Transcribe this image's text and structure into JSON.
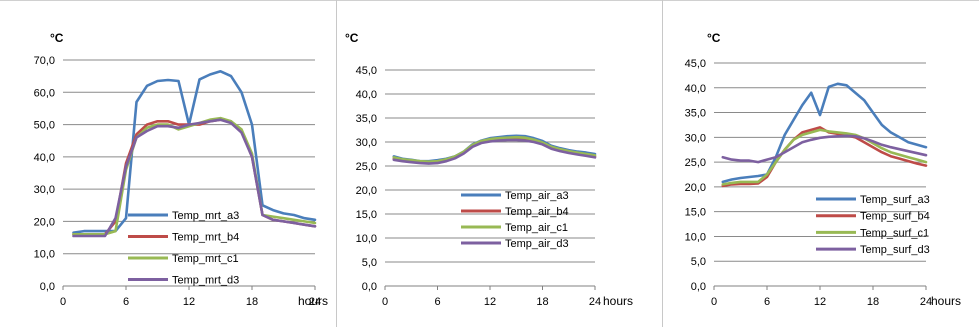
{
  "chart_data": [
    {
      "type": "line",
      "ylabel": "°C",
      "xlabel": "hours",
      "ylim": [
        0,
        70
      ],
      "yticks": [
        "0,0",
        "10,0",
        "20,0",
        "30,0",
        "40,0",
        "50,0",
        "60,0",
        "70,0"
      ],
      "xlim": [
        0,
        24
      ],
      "xticks": [
        "0",
        "6",
        "12",
        "18",
        "24"
      ],
      "grid": "horizontal",
      "legend_position": "bottom-center",
      "x": [
        1,
        2,
        3,
        4,
        5,
        6,
        7,
        8,
        9,
        10,
        11,
        12,
        13,
        14,
        15,
        16,
        17,
        18,
        19,
        20,
        21,
        22,
        23,
        24
      ],
      "series": [
        {
          "name": "Temp_mrt_a3",
          "color": "#4a7ebb",
          "values": [
            16.5,
            17,
            17,
            17,
            17,
            21,
            57,
            62,
            63.5,
            63.8,
            63.5,
            50,
            64,
            65.5,
            66.5,
            65,
            60,
            50,
            25,
            23.5,
            22.5,
            22,
            21,
            20.5
          ]
        },
        {
          "name": "Temp_mrt_b4",
          "color": "#be4b48",
          "values": [
            16,
            16,
            16,
            16,
            20,
            38,
            47,
            50,
            51,
            51,
            50,
            50,
            50,
            51,
            51.5,
            51,
            48,
            40,
            22,
            20.5,
            20,
            19.5,
            19,
            18.5
          ]
        },
        {
          "name": "Temp_mrt_c1",
          "color": "#98b954",
          "values": [
            16,
            16,
            16,
            16,
            17,
            36,
            46,
            49,
            50,
            50,
            48.5,
            49.5,
            50.5,
            51.5,
            52,
            51,
            48.5,
            41,
            22,
            21.5,
            21,
            20.5,
            20,
            19.5
          ]
        },
        {
          "name": "Temp_mrt_d3",
          "color": "#7d60a0",
          "values": [
            15.5,
            15.5,
            15.5,
            15.5,
            21,
            37,
            46,
            48,
            49.5,
            49.5,
            49,
            50,
            50.5,
            51,
            51.5,
            50.5,
            47.5,
            40,
            22,
            20.5,
            20,
            19.5,
            19,
            18.5
          ]
        }
      ]
    },
    {
      "type": "line",
      "ylabel": "°C",
      "xlabel": "hours",
      "ylim": [
        0,
        45
      ],
      "yticks": [
        "0,0",
        "5,0",
        "10,0",
        "15,0",
        "20,0",
        "25,0",
        "30,0",
        "35,0",
        "40,0",
        "45,0"
      ],
      "xlim": [
        0,
        24
      ],
      "xticks": [
        "0",
        "6",
        "12",
        "18",
        "24"
      ],
      "grid": "horizontal",
      "legend_position": "bottom-right",
      "x": [
        1,
        2,
        3,
        4,
        5,
        6,
        7,
        8,
        9,
        10,
        11,
        12,
        13,
        14,
        15,
        16,
        17,
        18,
        19,
        20,
        21,
        22,
        23,
        24
      ],
      "series": [
        {
          "name": "Temp_air_a3",
          "color": "#4a7ebb",
          "values": [
            27,
            26.5,
            26.3,
            26,
            26,
            26.2,
            26.5,
            27,
            28,
            29.5,
            30.3,
            30.8,
            31,
            31.2,
            31.3,
            31.2,
            30.8,
            30.2,
            29.2,
            28.7,
            28.3,
            28,
            27.8,
            27.5
          ]
        },
        {
          "name": "Temp_air_b4",
          "color": "#be4b48",
          "values": [
            26.5,
            26.2,
            26,
            25.8,
            25.7,
            25.8,
            26.2,
            26.8,
            27.8,
            29.2,
            30,
            30.3,
            30.5,
            30.6,
            30.6,
            30.6,
            30.3,
            29.7,
            28.8,
            28.3,
            27.9,
            27.6,
            27.3,
            27
          ]
        },
        {
          "name": "Temp_air_c1",
          "color": "#98b954",
          "values": [
            26.8,
            26.4,
            26.2,
            26,
            25.9,
            26,
            26.4,
            27,
            28,
            29.4,
            30.2,
            30.6,
            30.8,
            30.9,
            31,
            30.9,
            30.5,
            29.9,
            29,
            28.5,
            28.1,
            27.8,
            27.5,
            27.2
          ]
        },
        {
          "name": "Temp_air_d3",
          "color": "#7d60a0",
          "values": [
            26.3,
            26,
            25.8,
            25.6,
            25.5,
            25.6,
            26,
            26.6,
            27.6,
            29,
            29.8,
            30.1,
            30.3,
            30.4,
            30.4,
            30.3,
            30,
            29.5,
            28.6,
            28.1,
            27.7,
            27.4,
            27.1,
            26.8
          ]
        }
      ]
    },
    {
      "type": "line",
      "ylabel": "°C",
      "xlabel": "hours",
      "ylim": [
        0,
        45
      ],
      "yticks": [
        "0,0",
        "5,0",
        "10,0",
        "15,0",
        "20,0",
        "25,0",
        "30,0",
        "35,0",
        "40,0",
        "45,0"
      ],
      "xlim": [
        0,
        24
      ],
      "xticks": [
        "0",
        "6",
        "12",
        "18",
        "24"
      ],
      "grid": "horizontal",
      "legend_position": "bottom-right",
      "x": [
        1,
        2,
        3,
        4,
        5,
        6,
        7,
        8,
        9,
        10,
        11,
        12,
        13,
        14,
        15,
        16,
        17,
        18,
        19,
        20,
        21,
        22,
        23,
        24
      ],
      "series": [
        {
          "name": "Temp_surf_a3",
          "color": "#4a7ebb",
          "values": [
            21,
            21.5,
            21.8,
            22,
            22.2,
            22.5,
            26,
            30.5,
            33.5,
            36.5,
            39,
            34.5,
            40.2,
            40.8,
            40.5,
            39,
            37.5,
            35,
            32.5,
            31,
            30,
            29,
            28.5,
            28
          ]
        },
        {
          "name": "Temp_surf_b4",
          "color": "#be4b48",
          "values": [
            20.2,
            20.5,
            20.6,
            20.6,
            20.7,
            22,
            25,
            27.5,
            29.5,
            31,
            31.5,
            32,
            31,
            30.7,
            30.4,
            30,
            29,
            28,
            27,
            26.2,
            25.7,
            25.2,
            24.7,
            24.3
          ]
        },
        {
          "name": "Temp_surf_c1",
          "color": "#98b954",
          "values": [
            20.5,
            20.8,
            21,
            21,
            21,
            22.5,
            25,
            27.5,
            29.5,
            30.5,
            31,
            31.5,
            31.2,
            31,
            30.8,
            30.5,
            29.8,
            28.8,
            27.8,
            27,
            26.5,
            26,
            25.5,
            25
          ]
        },
        {
          "name": "Temp_surf_d3",
          "color": "#7d60a0",
          "values": [
            26,
            25.5,
            25.3,
            25.3,
            25,
            25.5,
            26,
            27,
            28,
            29,
            29.5,
            29.9,
            30.1,
            30.2,
            30.3,
            30.2,
            29.8,
            29.2,
            28.5,
            28,
            27.6,
            27.2,
            26.8,
            26.4
          ]
        }
      ]
    }
  ]
}
